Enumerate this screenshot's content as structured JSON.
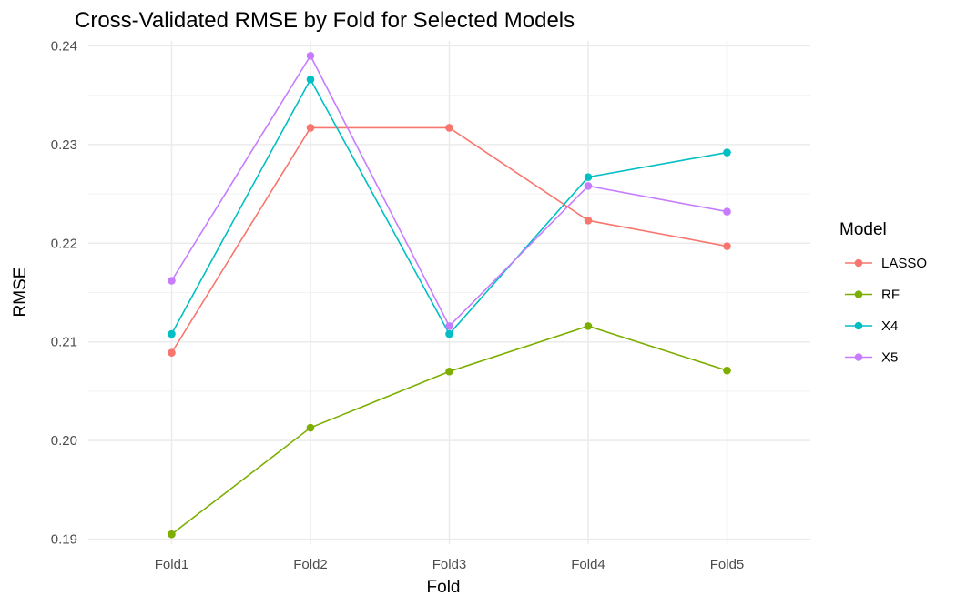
{
  "chart_data": {
    "type": "line",
    "title": "Cross-Validated RMSE by Fold for Selected Models",
    "xlabel": "Fold",
    "ylabel": "RMSE",
    "categories": [
      "Fold1",
      "Fold2",
      "Fold3",
      "Fold4",
      "Fold5"
    ],
    "ylim": [
      0.1895,
      0.2405
    ],
    "yticks": [
      0.19,
      0.2,
      0.21,
      0.22,
      0.23,
      0.24
    ],
    "ytick_labels": [
      "0.19",
      "0.20",
      "0.21",
      "0.22",
      "0.23",
      "0.24"
    ],
    "grid": true,
    "legend": {
      "title": "Model",
      "position": "right"
    },
    "series": [
      {
        "name": "LASSO",
        "color": "#F8766D",
        "values": [
          0.2089,
          0.2317,
          0.2317,
          0.2223,
          0.2197
        ]
      },
      {
        "name": "RF",
        "color": "#7CAE00",
        "values": [
          0.1905,
          0.2013,
          0.207,
          0.2116,
          0.2071
        ]
      },
      {
        "name": "X4",
        "color": "#00BFC4",
        "values": [
          0.2108,
          0.2366,
          0.2108,
          0.2267,
          0.2292
        ]
      },
      {
        "name": "X5",
        "color": "#C77CFF",
        "values": [
          0.2162,
          0.239,
          0.2116,
          0.2258,
          0.2232
        ]
      }
    ]
  }
}
